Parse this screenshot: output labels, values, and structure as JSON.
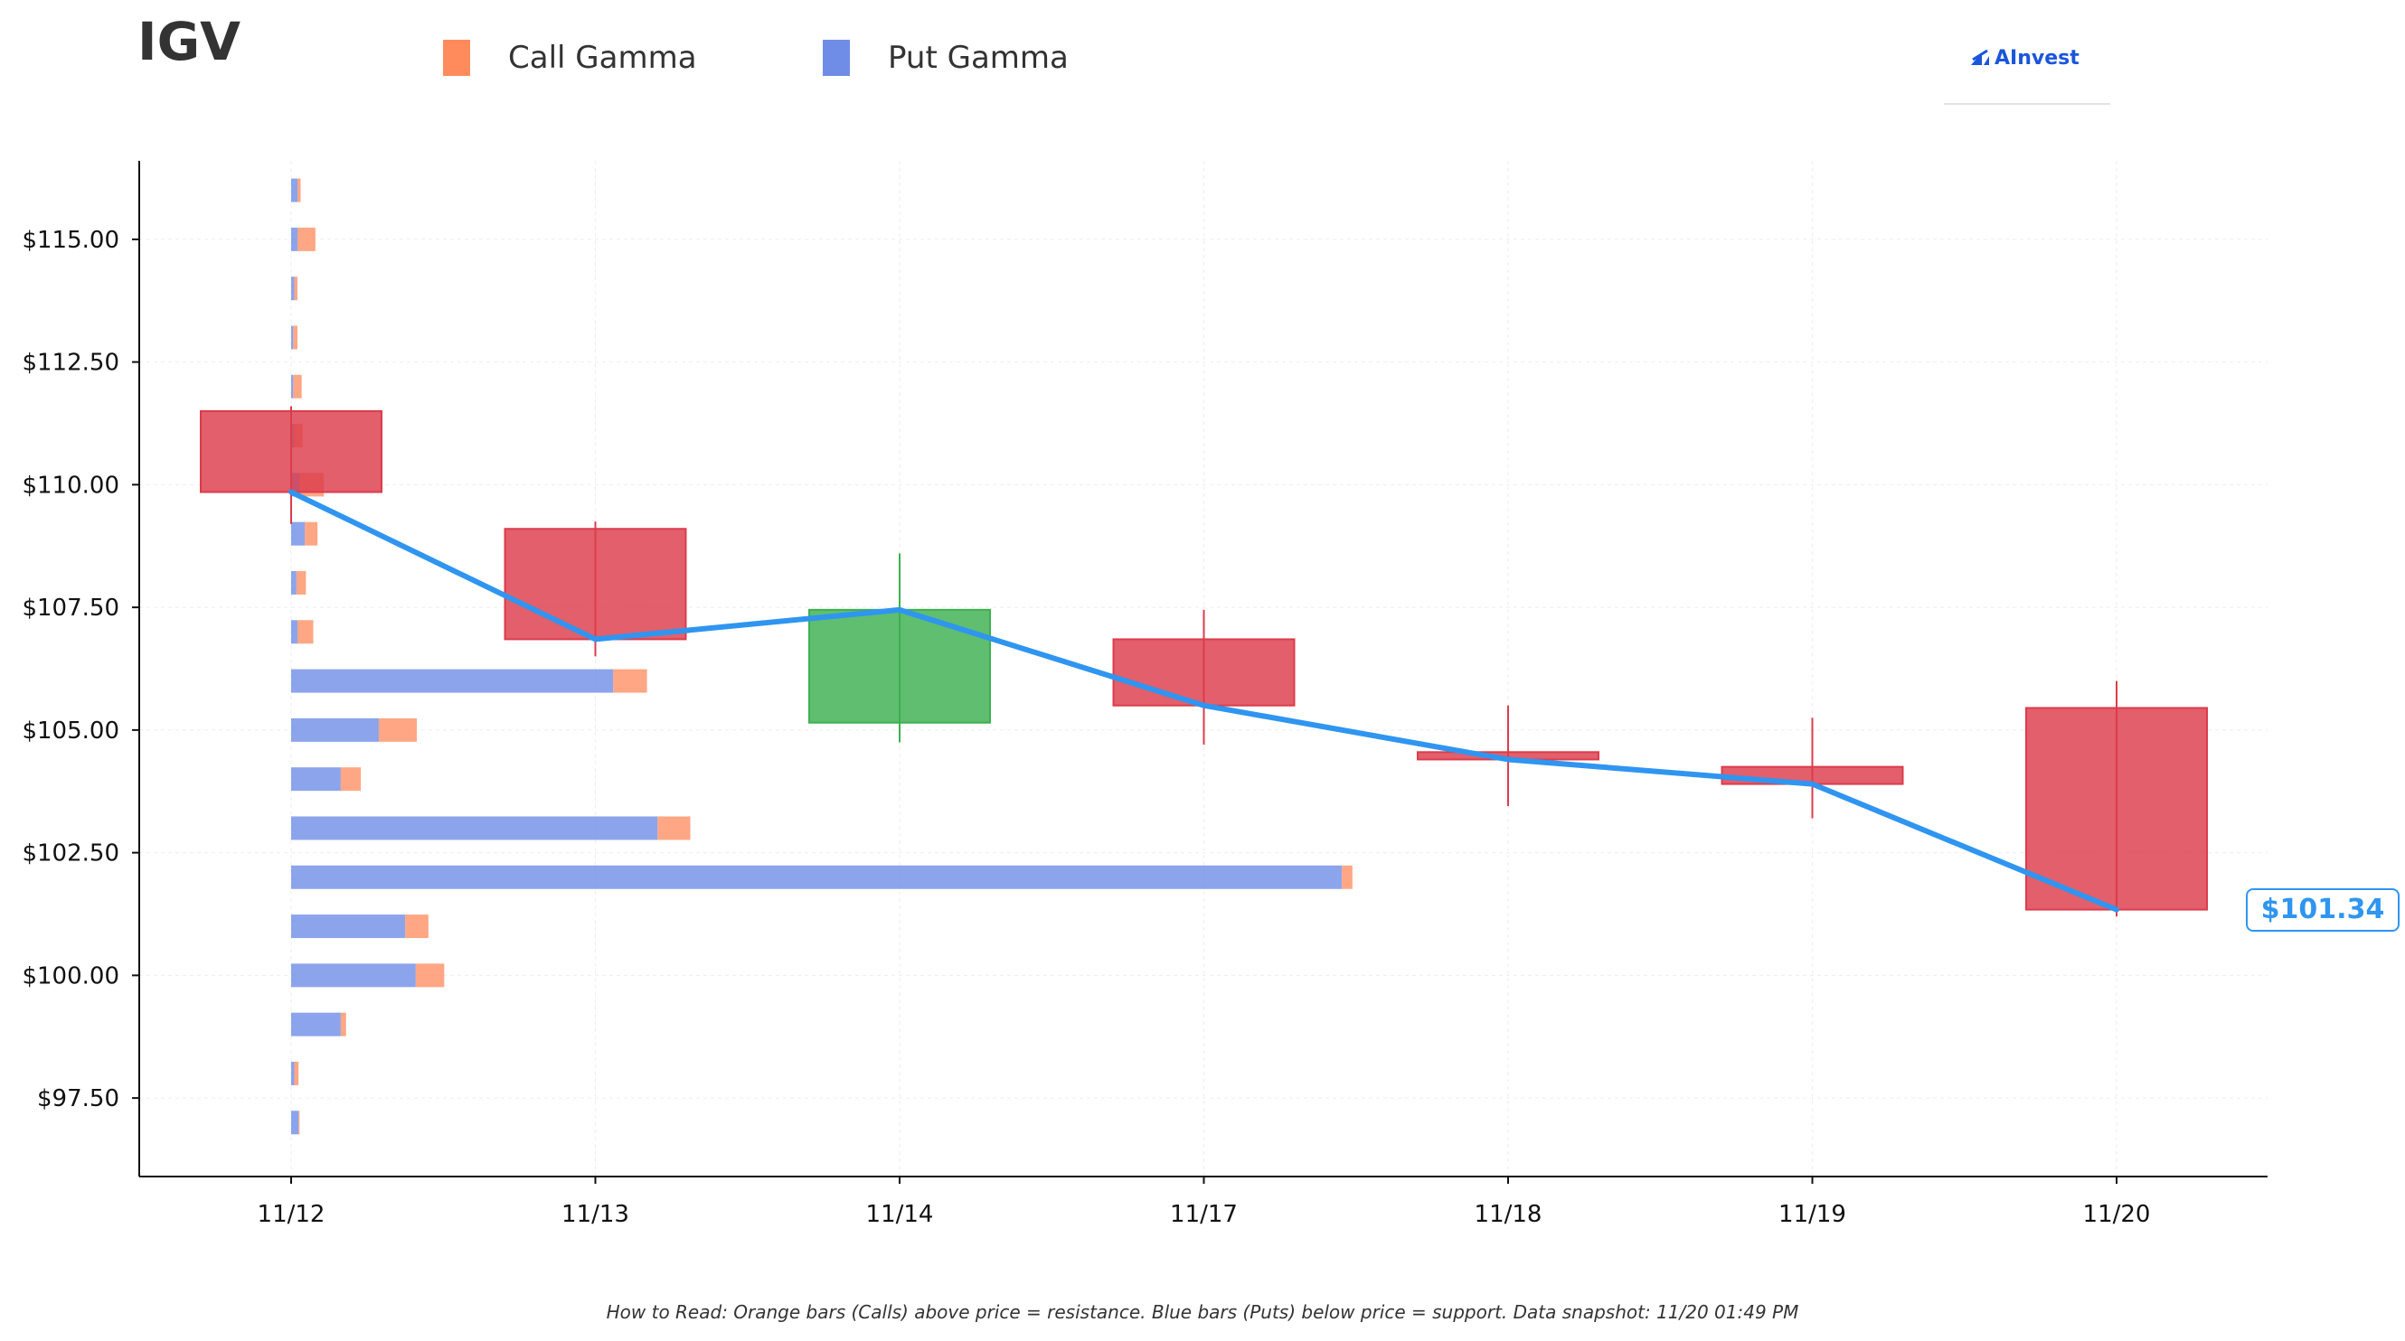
{
  "title": "IGV",
  "legend": [
    {
      "label": "Call Gamma",
      "color": "#ff8a5c"
    },
    {
      "label": "Put Gamma",
      "color": "#6f8de6"
    }
  ],
  "logo_text": "AInvest",
  "price_label": "$101.34",
  "footnote": "How to Read: Orange bars (Calls) above price = resistance. Blue bars (Puts) below price = support. Data snapshot: 11/20 01:49 PM",
  "colors": {
    "call": "#ff8a5c",
    "put": "#6f8de6",
    "up": "#3cb04f",
    "down": "#dc3c4b",
    "line": "#2f95f0"
  },
  "chart_data": {
    "type": "candlestick",
    "categories": [
      "11/12",
      "11/13",
      "11/14",
      "11/17",
      "11/18",
      "11/19",
      "11/20"
    ],
    "yticks": [
      97.5,
      100.0,
      102.5,
      105.0,
      107.5,
      110.0,
      112.5,
      115.0
    ],
    "ytick_labels": [
      "$97.50",
      "$100.00",
      "$102.50",
      "$105.00",
      "$107.50",
      "$110.00",
      "$112.50",
      "$115.00"
    ],
    "ylim": [
      95.9,
      116.6
    ],
    "candles": [
      {
        "date": "11/12",
        "open": 111.5,
        "close": 109.85,
        "high": 111.6,
        "low": 109.2
      },
      {
        "date": "11/13",
        "open": 109.1,
        "close": 106.85,
        "high": 109.25,
        "low": 106.5
      },
      {
        "date": "11/14",
        "open": 105.15,
        "close": 107.45,
        "high": 108.6,
        "low": 104.75
      },
      {
        "date": "11/17",
        "open": 106.85,
        "close": 105.5,
        "high": 107.45,
        "low": 104.7
      },
      {
        "date": "11/18",
        "open": 104.55,
        "close": 104.4,
        "high": 105.5,
        "low": 103.45
      },
      {
        "date": "11/19",
        "open": 104.25,
        "close": 103.9,
        "high": 105.25,
        "low": 103.2
      },
      {
        "date": "11/20",
        "open": 105.45,
        "close": 101.34,
        "high": 106.0,
        "low": 101.2
      }
    ],
    "close_line": [
      109.85,
      106.85,
      107.45,
      105.5,
      104.4,
      103.9,
      101.34
    ],
    "gamma": [
      {
        "strike": 116.0,
        "put": 0.006,
        "call": 0.003
      },
      {
        "strike": 115.0,
        "put": 0.006,
        "call": 0.017
      },
      {
        "strike": 114.0,
        "put": 0.003,
        "call": 0.003
      },
      {
        "strike": 113.0,
        "put": 0.002,
        "call": 0.004
      },
      {
        "strike": 112.0,
        "put": 0.002,
        "call": 0.008
      },
      {
        "strike": 111.0,
        "put": 0.003,
        "call": 0.008
      },
      {
        "strike": 110.0,
        "put": 0.008,
        "call": 0.023
      },
      {
        "strike": 109.0,
        "put": 0.013,
        "call": 0.012
      },
      {
        "strike": 108.0,
        "put": 0.005,
        "call": 0.009
      },
      {
        "strike": 107.0,
        "put": 0.006,
        "call": 0.015
      },
      {
        "strike": 106.0,
        "put": 0.305,
        "call": 0.032
      },
      {
        "strike": 105.0,
        "put": 0.083,
        "call": 0.036
      },
      {
        "strike": 104.0,
        "put": 0.047,
        "call": 0.019
      },
      {
        "strike": 103.0,
        "put": 0.347,
        "call": 0.031
      },
      {
        "strike": 102.0,
        "put": 0.995,
        "call": 0.01
      },
      {
        "strike": 101.0,
        "put": 0.108,
        "call": 0.022
      },
      {
        "strike": 100.0,
        "put": 0.118,
        "call": 0.027
      },
      {
        "strike": 99.0,
        "put": 0.047,
        "call": 0.005
      },
      {
        "strike": 98.0,
        "put": 0.003,
        "call": 0.004
      },
      {
        "strike": 97.0,
        "put": 0.007,
        "call": 0.001
      }
    ]
  }
}
